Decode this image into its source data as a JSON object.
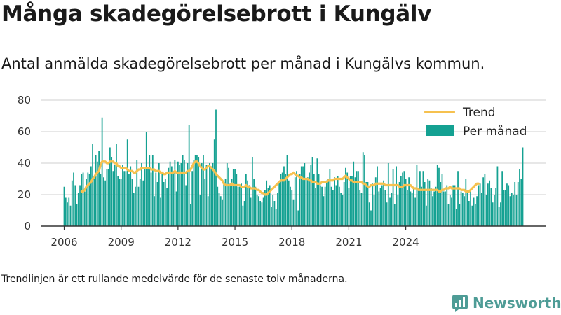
{
  "title": "Många skadegörelsebrott i Kungälv",
  "subtitle": "Antal anmälda skadegörelsebrott per månad i Kungälvs kommun.",
  "footnote": "Trendlinjen är ett rullande medelvärde för de senaste tolv månaderna.",
  "brand": {
    "name": "Newsworthy",
    "color": "#4e9c96"
  },
  "colors": {
    "bars": "#14a192",
    "trend": "#f6c14f",
    "axis": "#333333"
  },
  "chart_data": {
    "type": "bar",
    "title": "",
    "xlabel": "",
    "ylabel": "",
    "ylim": [
      0,
      80
    ],
    "yticks": [
      0,
      20,
      40,
      60,
      80
    ],
    "xticks": [
      "2006",
      "2009",
      "2012",
      "2015",
      "2018",
      "2021",
      "2024"
    ],
    "grid": "horizontal",
    "legend_position": "top-right",
    "series": [
      {
        "name": "Per månad",
        "kind": "bar",
        "start": "2006-01",
        "values": [
          25,
          18,
          15,
          18,
          13,
          29,
          34,
          26,
          14,
          21,
          26,
          33,
          34,
          22,
          30,
          34,
          33,
          38,
          52,
          30,
          45,
          41,
          48,
          33,
          69,
          31,
          29,
          36,
          36,
          50,
          44,
          35,
          39,
          52,
          32,
          30,
          30,
          39,
          35,
          35,
          55,
          33,
          38,
          30,
          21,
          25,
          42,
          25,
          30,
          40,
          29,
          36,
          60,
          37,
          45,
          34,
          45,
          19,
          34,
          28,
          40,
          18,
          34,
          28,
          30,
          24,
          37,
          41,
          38,
          35,
          42,
          22,
          41,
          39,
          40,
          45,
          42,
          26,
          40,
          64,
          14,
          35,
          42,
          45,
          45,
          44,
          20,
          40,
          45,
          30,
          39,
          19,
          40,
          38,
          40,
          55,
          74,
          25,
          21,
          19,
          17,
          28,
          30,
          40,
          37,
          27,
          30,
          36,
          36,
          33,
          25,
          25,
          27,
          13,
          16,
          33,
          29,
          26,
          18,
          44,
          30,
          25,
          20,
          19,
          16,
          15,
          18,
          23,
          29,
          24,
          26,
          12,
          20,
          16,
          11,
          21,
          28,
          33,
          34,
          38,
          33,
          45,
          29,
          25,
          23,
          17,
          31,
          35,
          10,
          33,
          38,
          38,
          40,
          30,
          31,
          34,
          39,
          44,
          33,
          24,
          43,
          33,
          26,
          25,
          19,
          25,
          29,
          30,
          36,
          25,
          23,
          31,
          26,
          32,
          25,
          21,
          20,
          28,
          37,
          34,
          24,
          32,
          32,
          41,
          31,
          35,
          35,
          23,
          21,
          47,
          45,
          28,
          28,
          15,
          10,
          27,
          20,
          31,
          38,
          22,
          24,
          26,
          29,
          23,
          15,
          40,
          18,
          21,
          36,
          14,
          38,
          20,
          28,
          32,
          34,
          35,
          30,
          23,
          31,
          22,
          21,
          24,
          18,
          39,
          24,
          35,
          25,
          35,
          28,
          13,
          30,
          29,
          24,
          19,
          22,
          25,
          39,
          37,
          28,
          33,
          22,
          22,
          26,
          14,
          20,
          18,
          26,
          26,
          11,
          35,
          14,
          22,
          21,
          19,
          30,
          21,
          16,
          23,
          13,
          18,
          14,
          19,
          26,
          27,
          21,
          31,
          33,
          20,
          27,
          29,
          24,
          15,
          20,
          24,
          38,
          12,
          15,
          35,
          23,
          23,
          27,
          26,
          19,
          21,
          20,
          28,
          20,
          28,
          36,
          30,
          50
        ]
      },
      {
        "name": "Trend",
        "kind": "line",
        "start": "2006-12",
        "values": [
          22,
          22,
          23,
          25,
          26,
          27,
          28,
          30,
          31,
          33,
          34,
          35,
          39,
          41,
          41,
          41,
          40,
          40,
          41,
          41,
          41,
          40,
          40,
          38,
          38,
          37,
          37,
          37,
          37,
          36,
          35,
          35,
          35,
          34,
          34,
          35,
          36,
          36,
          37,
          37,
          37,
          37,
          37,
          37,
          36,
          36,
          36,
          35,
          35,
          35,
          34,
          34,
          33,
          33,
          34,
          34,
          34,
          34,
          34,
          35,
          34,
          34,
          34,
          34,
          34,
          34,
          34,
          35,
          35,
          36,
          38,
          40,
          41,
          41,
          40,
          38,
          37,
          36,
          36,
          37,
          38,
          38,
          37,
          36,
          35,
          33,
          32,
          31,
          30,
          29,
          27,
          26,
          26,
          26,
          26,
          27,
          26,
          26,
          26,
          26,
          26,
          25,
          25,
          25,
          26,
          25,
          25,
          24,
          24,
          24,
          24,
          23,
          23,
          22,
          21,
          21,
          20,
          20,
          21,
          22,
          23,
          24,
          25,
          26,
          27,
          28,
          29,
          29,
          29,
          30,
          31,
          32,
          33,
          33,
          34,
          33,
          32,
          32,
          31,
          31,
          30,
          30,
          30,
          30,
          29,
          29,
          28,
          28,
          28,
          27,
          27,
          27,
          28,
          28,
          28,
          28,
          29,
          29,
          29,
          29,
          30,
          30,
          30,
          30,
          30,
          30,
          31,
          32,
          31,
          30,
          29,
          29,
          28,
          28,
          28,
          28,
          28,
          28,
          27,
          27,
          26,
          25,
          25,
          26,
          26,
          26,
          27,
          27,
          27,
          27,
          27,
          27,
          26,
          26,
          26,
          26,
          26,
          26,
          26,
          26,
          26,
          25,
          25,
          25,
          26,
          26,
          26,
          26,
          26,
          25,
          24,
          24,
          24,
          23,
          23,
          23,
          23,
          23,
          23,
          23,
          23,
          23,
          23,
          23,
          23,
          23,
          22,
          22,
          23,
          23,
          24,
          24,
          24,
          25,
          24,
          24,
          24,
          24,
          24,
          24,
          23,
          23,
          23,
          22,
          22,
          22,
          23,
          24,
          25,
          26,
          27,
          27
        ]
      }
    ]
  }
}
